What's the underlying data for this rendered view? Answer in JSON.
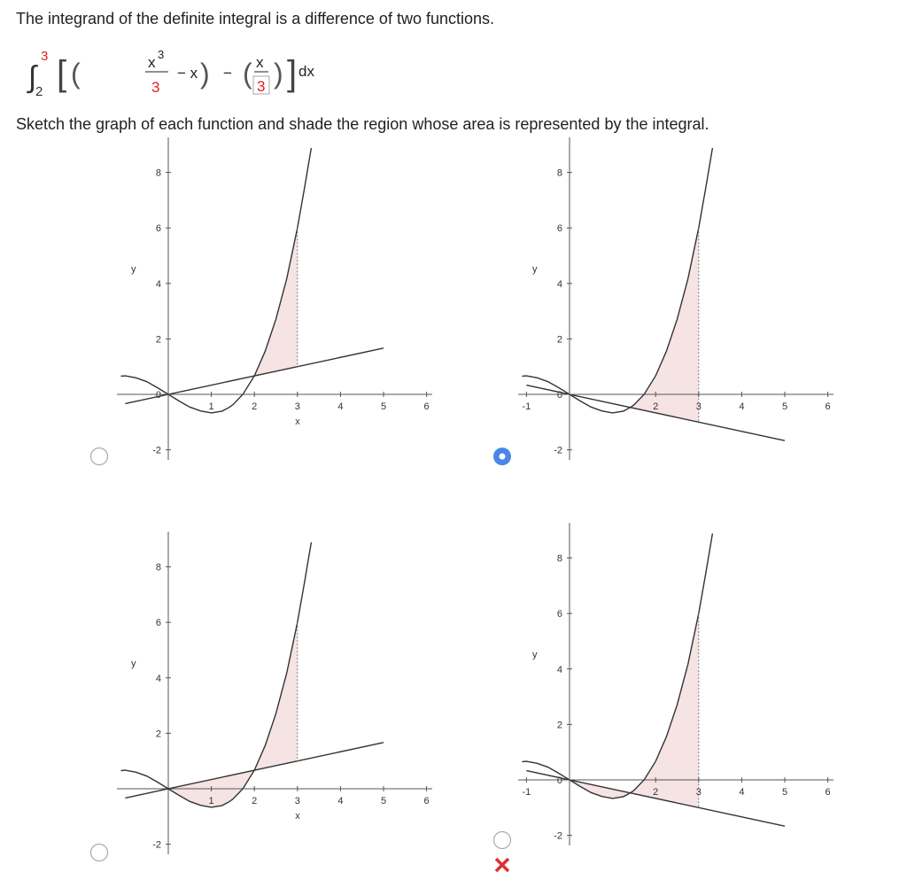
{
  "question": {
    "intro": "The integrand of the definite integral is a difference of two functions.",
    "integral": {
      "sign": "∫",
      "upper": "3",
      "lower": "2",
      "num1": "x",
      "exp1": "3",
      "den1": "3",
      "minus1": "− x",
      "minus2": "−",
      "num2": "x",
      "den2": "3",
      "dx": "dx"
    },
    "instruction": "Sketch the graph of each function and shade the region whose area is represented by the integral."
  },
  "options": [
    {
      "selected": false,
      "x_label": "x",
      "y_label": "y",
      "xticks": [
        1,
        2,
        3,
        4,
        5,
        6
      ],
      "yticks": [
        -2,
        0,
        2,
        4,
        6,
        8
      ]
    },
    {
      "selected": true,
      "y_label": "y",
      "xticks": [
        -1,
        2,
        3,
        4,
        5,
        6
      ],
      "yticks": [
        -2,
        0,
        2,
        4,
        6,
        8
      ]
    },
    {
      "selected": false,
      "x_label": "x",
      "y_label": "y",
      "xticks": [
        1,
        2,
        3,
        4,
        5,
        6
      ],
      "yticks": [
        -2,
        2,
        4,
        6,
        8
      ]
    },
    {
      "selected": false,
      "y_label": "y",
      "xticks": [
        -1,
        2,
        3,
        4,
        5,
        6
      ],
      "yticks": [
        -2,
        0,
        2,
        4,
        6,
        8
      ]
    }
  ]
}
